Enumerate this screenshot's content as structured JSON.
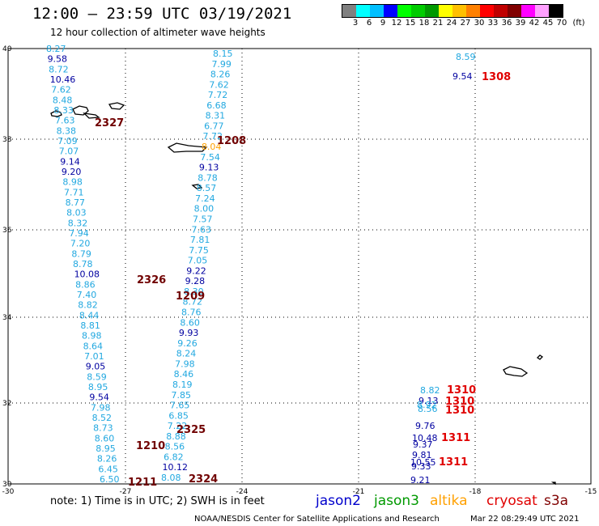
{
  "header": {
    "title": "12:00 – 23:59 UTC 03/19/2021",
    "subtitle": "12 hour collection of altimeter wave heights"
  },
  "legend": {
    "colors": [
      "#808080",
      "#00ffff",
      "#00bfff",
      "#0000ff",
      "#00ff00",
      "#00cc00",
      "#009900",
      "#ffff00",
      "#ffc000",
      "#ff8000",
      "#ff0000",
      "#c00000",
      "#800000",
      "#ff00ff",
      "#ffa0ff",
      "#000000"
    ],
    "labels": [
      "3",
      "6",
      "9",
      "12",
      "15",
      "18",
      "21",
      "24",
      "27",
      "30",
      "33",
      "36",
      "39",
      "42",
      "45",
      "70",
      "(ft)"
    ]
  },
  "axes": {
    "lat_labels": [
      "40",
      "38",
      "36",
      "34",
      "32",
      "30"
    ],
    "lon_labels": [
      "-30",
      "-27",
      "-24",
      "-21",
      "-18",
      "-15"
    ]
  },
  "colors": {
    "cyan": "#22a8e0",
    "navy": "#0000a0",
    "maroon": "#700000",
    "red": "#e00000",
    "orange": "#ffa000"
  },
  "track_west": [
    [
      "8.27",
      "cyan"
    ],
    [
      "9.58",
      "navy"
    ],
    [
      "8.72",
      "cyan"
    ],
    [
      "10.46",
      "navy"
    ],
    [
      "7.62",
      "cyan"
    ],
    [
      "8.48",
      "cyan"
    ],
    [
      "8.33",
      "cyan"
    ],
    [
      "7.63",
      "cyan"
    ],
    [
      "8.38",
      "cyan"
    ],
    [
      "7.09",
      "cyan"
    ],
    [
      "7.07",
      "cyan"
    ],
    [
      "9.14",
      "navy"
    ],
    [
      "9.20",
      "navy"
    ],
    [
      "8.98",
      "cyan"
    ],
    [
      "7.71",
      "cyan"
    ],
    [
      "8.77",
      "cyan"
    ],
    [
      "8.03",
      "cyan"
    ],
    [
      "8.32",
      "cyan"
    ],
    [
      "7.94",
      "cyan"
    ],
    [
      "7.20",
      "cyan"
    ],
    [
      "8.79",
      "cyan"
    ],
    [
      "8.78",
      "cyan"
    ],
    [
      "10.08",
      "navy"
    ],
    [
      "8.86",
      "cyan"
    ],
    [
      "7.40",
      "cyan"
    ],
    [
      "8.82",
      "cyan"
    ],
    [
      "8.44",
      "cyan"
    ],
    [
      "8.81",
      "cyan"
    ],
    [
      "8.98",
      "cyan"
    ],
    [
      "8.64",
      "cyan"
    ],
    [
      "7.01",
      "cyan"
    ],
    [
      "9.05",
      "navy"
    ],
    [
      "8.59",
      "cyan"
    ],
    [
      "8.95",
      "cyan"
    ],
    [
      "9.54",
      "navy"
    ],
    [
      "7.98",
      "cyan"
    ],
    [
      "8.52",
      "cyan"
    ],
    [
      "8.73",
      "cyan"
    ],
    [
      "8.60",
      "cyan"
    ],
    [
      "8.95",
      "cyan"
    ],
    [
      "8.26",
      "cyan"
    ],
    [
      "6.45",
      "cyan"
    ],
    [
      "6.50",
      "cyan"
    ]
  ],
  "track_east": [
    [
      "8.15",
      "cyan"
    ],
    [
      "7.99",
      "cyan"
    ],
    [
      "8.26",
      "cyan"
    ],
    [
      "7.62",
      "cyan"
    ],
    [
      "7.72",
      "cyan"
    ],
    [
      "6.68",
      "cyan"
    ],
    [
      "8.31",
      "cyan"
    ],
    [
      "6.77",
      "cyan"
    ],
    [
      "7.72",
      "cyan"
    ],
    [
      "8.04",
      "orange"
    ],
    [
      "7.54",
      "cyan"
    ],
    [
      "9.13",
      "navy"
    ],
    [
      "8.78",
      "cyan"
    ],
    [
      "8.57",
      "cyan"
    ],
    [
      "7.24",
      "cyan"
    ],
    [
      "8.00",
      "cyan"
    ],
    [
      "7.57",
      "cyan"
    ],
    [
      "7.63",
      "cyan"
    ],
    [
      "7.81",
      "cyan"
    ],
    [
      "7.75",
      "cyan"
    ],
    [
      "7.05",
      "cyan"
    ],
    [
      "9.22",
      "navy"
    ],
    [
      "9.28",
      "navy"
    ],
    [
      "8.30",
      "cyan"
    ],
    [
      "8.72",
      "cyan"
    ],
    [
      "8.76",
      "cyan"
    ],
    [
      "8.60",
      "cyan"
    ],
    [
      "9.93",
      "navy"
    ],
    [
      "9.26",
      "cyan"
    ],
    [
      "8.24",
      "cyan"
    ],
    [
      "7.98",
      "cyan"
    ],
    [
      "8.46",
      "cyan"
    ],
    [
      "8.19",
      "cyan"
    ],
    [
      "7.85",
      "cyan"
    ],
    [
      "7.65",
      "cyan"
    ],
    [
      "6.85",
      "cyan"
    ],
    [
      "7.22",
      "cyan"
    ],
    [
      "8.88",
      "cyan"
    ],
    [
      "8.56",
      "cyan"
    ],
    [
      "6.82",
      "cyan"
    ],
    [
      "10.12",
      "navy"
    ],
    [
      "8.08",
      "cyan"
    ]
  ],
  "track_far_east": [
    [
      "8.59",
      "cyan"
    ],
    [
      "9.54",
      "navy"
    ],
    [
      "8.82",
      "cyan"
    ],
    [
      "9.13",
      "navy"
    ],
    [
      "8.92",
      "cyan"
    ],
    [
      "8.56",
      "cyan"
    ],
    [
      "9.76",
      "navy"
    ],
    [
      "10.48",
      "navy"
    ],
    [
      "9.37",
      "navy"
    ],
    [
      "9.81",
      "navy"
    ],
    [
      "10.55",
      "navy"
    ],
    [
      "9.33",
      "navy"
    ],
    [
      "9.21",
      "navy"
    ]
  ],
  "pass_labels": [
    "2327",
    "1308",
    "1208",
    "2326",
    "1209",
    "1310",
    "1310",
    "1310",
    "2325",
    "1311",
    "1210",
    "1311",
    "2324",
    "1211"
  ],
  "note": "note:  1) Time is in UTC;  2) SWH is in feet",
  "satellites": [
    {
      "name": "jason2",
      "color": "#0000cc"
    },
    {
      "name": "jason3",
      "color": "#009900"
    },
    {
      "name": "altika",
      "color": "#ffa000"
    },
    {
      "name": "cryosat",
      "color": "#e00000"
    },
    {
      "name": "s3a",
      "color": "#800000"
    }
  ],
  "footer": {
    "credit": "NOAA/NESDIS Center for Satellite Applications and Research",
    "timestamp": "Mar 22 08:29:49 UTC 2021"
  }
}
